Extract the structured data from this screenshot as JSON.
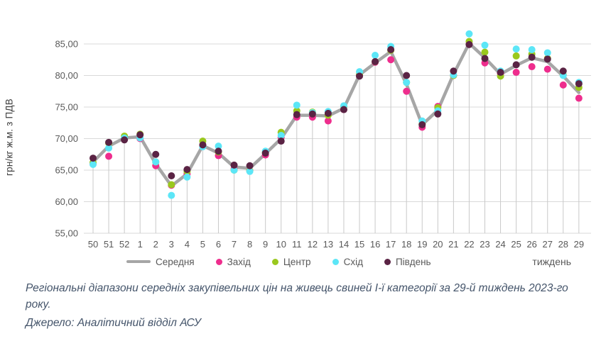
{
  "chart_data": {
    "type": "line",
    "title": "",
    "ylabel": "грн/кг ж.м. з ПДВ",
    "xlabel": "тиждень",
    "ylim": [
      55,
      85
    ],
    "ytick_step": 5,
    "ytick_labels": [
      "85,00",
      "80,00",
      "75,00",
      "70,00",
      "65,00",
      "60,00",
      "55,00"
    ],
    "grid": {
      "horizontal": true,
      "vertical_drop_lines": true,
      "gridline_color": "#d9d9d9",
      "drop_line_color": "#c9c9c9"
    },
    "legend_position": "bottom",
    "categories": [
      "50",
      "51",
      "52",
      "1",
      "2",
      "3",
      "4",
      "5",
      "6",
      "7",
      "8",
      "9",
      "10",
      "11",
      "12",
      "13",
      "14",
      "15",
      "16",
      "17",
      "18",
      "19",
      "20",
      "21",
      "22",
      "23",
      "24",
      "25",
      "26",
      "27",
      "28",
      "29"
    ],
    "series": [
      {
        "name": "Середня",
        "marker": "line",
        "color": "#a6a6a6",
        "values": [
          66.3,
          68.8,
          70.1,
          70.3,
          66.0,
          62.5,
          64.4,
          68.9,
          67.7,
          65.5,
          65.3,
          67.6,
          70.0,
          73.7,
          73.7,
          73.6,
          74.8,
          80.1,
          82.0,
          83.8,
          78.6,
          72.2,
          74.5,
          80.2,
          85.1,
          82.8,
          80.2,
          81.6,
          82.8,
          82.2,
          79.9,
          77.3
        ]
      },
      {
        "name": "Захід",
        "marker": "dot",
        "color": "#ee2d8d",
        "values": [
          66.0,
          67.2,
          69.9,
          70.0,
          65.7,
          62.6,
          64.4,
          68.9,
          67.3,
          65.2,
          64.9,
          67.4,
          70.2,
          73.4,
          73.4,
          72.8,
          74.6,
          80.0,
          82.1,
          82.5,
          77.5,
          71.8,
          75.1,
          80.0,
          85.0,
          82.0,
          80.3,
          80.5,
          81.4,
          81.0,
          78.5,
          76.4
        ]
      },
      {
        "name": "Центр",
        "marker": "dot",
        "color": "#9ac81e",
        "values": [
          66.2,
          69.3,
          70.4,
          70.7,
          66.3,
          62.7,
          64.8,
          69.6,
          67.9,
          65.0,
          64.9,
          67.8,
          71.0,
          74.4,
          74.2,
          73.7,
          75.1,
          80.2,
          82.2,
          84.0,
          78.9,
          72.3,
          74.9,
          80.0,
          85.4,
          83.7,
          79.9,
          83.1,
          83.4,
          82.7,
          80.1,
          78.1
        ]
      },
      {
        "name": "Схід",
        "marker": "dot",
        "color": "#5ce6f7",
        "values": [
          65.9,
          68.5,
          70.1,
          70.1,
          66.3,
          61.0,
          63.9,
          68.7,
          68.8,
          65.0,
          64.8,
          68.0,
          70.5,
          75.3,
          74.1,
          74.3,
          75.2,
          80.6,
          83.2,
          84.6,
          78.9,
          72.8,
          74.4,
          80.1,
          86.6,
          84.8,
          80.7,
          84.2,
          84.1,
          83.6,
          80.0,
          78.9
        ]
      },
      {
        "name": "Південь",
        "marker": "dot",
        "color": "#5a2344",
        "values": [
          66.9,
          69.4,
          69.8,
          70.6,
          67.5,
          64.1,
          65.1,
          69.0,
          68.0,
          65.8,
          65.7,
          67.7,
          69.6,
          73.8,
          73.9,
          74.0,
          74.6,
          79.9,
          82.2,
          84.1,
          80.0,
          72.2,
          73.9,
          80.7,
          84.9,
          82.7,
          80.5,
          81.7,
          82.9,
          82.6,
          80.7,
          78.7
        ]
      }
    ]
  },
  "caption": {
    "description": "Регіональні діапазони середніх закупівельних цін на живець свиней І-ї категорії за 29-й тиждень 2023-го року.",
    "source": "Джерело: Аналітичний відділ АСУ"
  }
}
